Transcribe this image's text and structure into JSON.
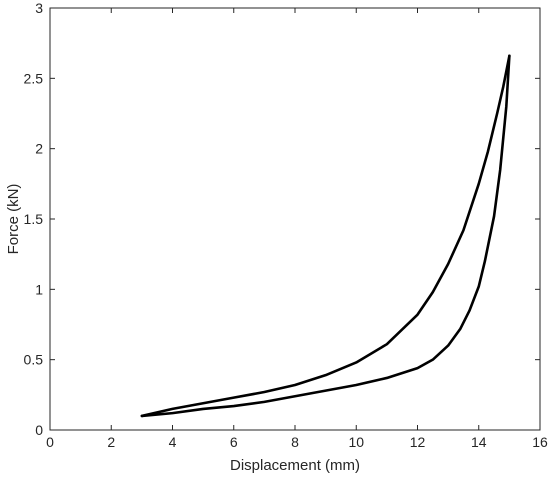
{
  "chart_data": {
    "type": "line",
    "title": "",
    "xlabel": "Displacement (mm)",
    "ylabel": "Force (kN)",
    "xlim": [
      0,
      16
    ],
    "ylim": [
      0,
      3
    ],
    "xticks": [
      "0",
      "2",
      "4",
      "6",
      "8",
      "10",
      "12",
      "14",
      "16"
    ],
    "yticks": [
      "0",
      "0.5",
      "1",
      "1.5",
      "2",
      "2.5",
      "3"
    ],
    "grid": false,
    "legend": "none",
    "line_color": "#000000",
    "series": [
      {
        "x": [
          3.0,
          4.0,
          5.0,
          6.0,
          7.0,
          8.0,
          9.0,
          10.0,
          11.0,
          12.0,
          12.5,
          13.0,
          13.5,
          14.0,
          14.3,
          14.6,
          14.8,
          15.0
        ],
        "y": [
          0.1,
          0.15,
          0.19,
          0.23,
          0.27,
          0.32,
          0.39,
          0.48,
          0.61,
          0.82,
          0.98,
          1.18,
          1.42,
          1.75,
          1.98,
          2.25,
          2.44,
          2.66
        ]
      },
      {
        "x": [
          15.0,
          14.9,
          14.7,
          14.5,
          14.2,
          14.0,
          13.7,
          13.4,
          13.0,
          12.5,
          12.0,
          11.0,
          10.0,
          9.0,
          8.0,
          7.0,
          6.0,
          5.0,
          4.0,
          3.0
        ],
        "y": [
          2.66,
          2.3,
          1.85,
          1.52,
          1.2,
          1.02,
          0.85,
          0.72,
          0.6,
          0.5,
          0.44,
          0.37,
          0.32,
          0.28,
          0.24,
          0.2,
          0.17,
          0.15,
          0.12,
          0.1
        ]
      }
    ]
  }
}
